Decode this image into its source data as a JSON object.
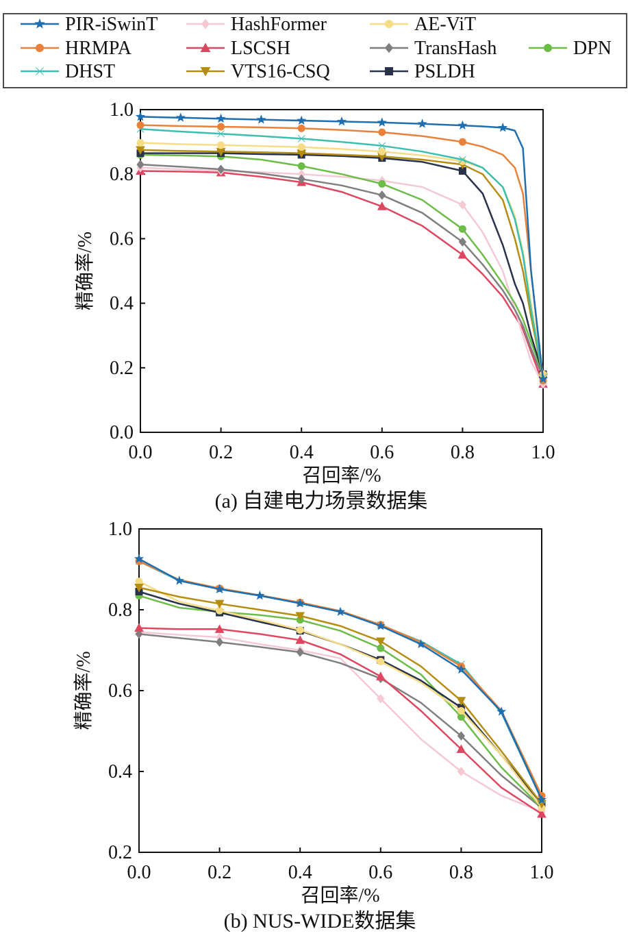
{
  "legend": [
    {
      "name": "PIR-iSwinT",
      "color": "#1f6fb0",
      "marker": "star"
    },
    {
      "name": "HashFormer",
      "color": "#f4c9d3",
      "marker": "diamond"
    },
    {
      "name": "AE-ViT",
      "color": "#f7dc86",
      "marker": "hexagon"
    },
    {
      "name": "HRMPA",
      "color": "#e8823a",
      "marker": "hexagon"
    },
    {
      "name": "LSCSH",
      "color": "#de4760",
      "marker": "triangle"
    },
    {
      "name": "TransHash",
      "color": "#7f7f7f",
      "marker": "diamond"
    },
    {
      "name": "DPN",
      "color": "#6cbd48",
      "marker": "circle"
    },
    {
      "name": "DHST",
      "color": "#3bbfb0",
      "marker": "x"
    },
    {
      "name": "VTS16-CSQ",
      "color": "#b58d10",
      "marker": "triangle-down"
    },
    {
      "name": "PSLDH",
      "color": "#28324a",
      "marker": "square"
    }
  ],
  "chart_data": [
    {
      "type": "line",
      "title": "(a) 自建电力场景数据集",
      "xlabel": "召回率/%",
      "ylabel": "精确率/%",
      "xlim": [
        0,
        1
      ],
      "ylim": [
        0,
        1
      ],
      "xticks": [
        "0.0",
        "0.2",
        "0.4",
        "0.6",
        "0.8",
        "1.0"
      ],
      "yticks": [
        "0.0",
        "0.2",
        "0.4",
        "0.6",
        "0.8",
        "1.0"
      ],
      "x": [
        0,
        0.1,
        0.2,
        0.3,
        0.4,
        0.5,
        0.6,
        0.7,
        0.8,
        0.85,
        0.9,
        0.93,
        0.95,
        0.97,
        1.0
      ],
      "series": [
        {
          "name": "PIR-iSwinT",
          "values": [
            0.978,
            0.975,
            0.972,
            0.969,
            0.966,
            0.963,
            0.96,
            0.956,
            0.951,
            0.948,
            0.944,
            0.935,
            0.88,
            0.5,
            0.165
          ]
        },
        {
          "name": "HRMPA",
          "values": [
            0.952,
            0.949,
            0.947,
            0.945,
            0.942,
            0.937,
            0.93,
            0.918,
            0.9,
            0.885,
            0.86,
            0.82,
            0.74,
            0.5,
            0.16
          ]
        },
        {
          "name": "DHST",
          "values": [
            0.94,
            0.932,
            0.925,
            0.918,
            0.91,
            0.9,
            0.888,
            0.87,
            0.845,
            0.82,
            0.76,
            0.66,
            0.55,
            0.38,
            0.17
          ]
        },
        {
          "name": "AE-ViT",
          "values": [
            0.897,
            0.893,
            0.89,
            0.887,
            0.884,
            0.878,
            0.87,
            0.858,
            0.84,
            0.82,
            0.76,
            0.67,
            0.56,
            0.4,
            0.18
          ]
        },
        {
          "name": "VTS16-CSQ",
          "values": [
            0.875,
            0.872,
            0.87,
            0.868,
            0.865,
            0.86,
            0.855,
            0.845,
            0.83,
            0.8,
            0.72,
            0.6,
            0.5,
            0.36,
            0.17
          ]
        },
        {
          "name": "PSLDH",
          "values": [
            0.865,
            0.865,
            0.865,
            0.862,
            0.86,
            0.856,
            0.85,
            0.838,
            0.81,
            0.74,
            0.58,
            0.46,
            0.4,
            0.3,
            0.18
          ]
        },
        {
          "name": "DPN",
          "values": [
            0.86,
            0.858,
            0.855,
            0.845,
            0.825,
            0.8,
            0.77,
            0.72,
            0.63,
            0.55,
            0.46,
            0.4,
            0.35,
            0.28,
            0.18
          ]
        },
        {
          "name": "TransHash",
          "values": [
            0.83,
            0.823,
            0.815,
            0.802,
            0.785,
            0.765,
            0.735,
            0.68,
            0.59,
            0.52,
            0.44,
            0.38,
            0.33,
            0.26,
            0.17
          ]
        },
        {
          "name": "HashFormer",
          "values": [
            0.82,
            0.815,
            0.81,
            0.806,
            0.8,
            0.792,
            0.78,
            0.76,
            0.705,
            0.62,
            0.5,
            0.38,
            0.3,
            0.22,
            0.15
          ]
        },
        {
          "name": "LSCSH",
          "values": [
            0.81,
            0.808,
            0.805,
            0.792,
            0.775,
            0.745,
            0.7,
            0.64,
            0.55,
            0.49,
            0.42,
            0.36,
            0.32,
            0.25,
            0.15
          ]
        }
      ]
    },
    {
      "type": "line",
      "title": "(b) NUS-WIDE数据集",
      "xlabel": "召回率/%",
      "ylabel": "精确率/%",
      "xlim": [
        0,
        1
      ],
      "ylim": [
        0.2,
        1
      ],
      "xticks": [
        "0.0",
        "0.2",
        "0.4",
        "0.6",
        "0.8",
        "1.0"
      ],
      "yticks": [
        "0.2",
        "0.4",
        "0.6",
        "0.8",
        "1.0"
      ],
      "x": [
        0,
        0.1,
        0.2,
        0.3,
        0.4,
        0.5,
        0.6,
        0.7,
        0.8,
        0.9,
        1.0
      ],
      "series": [
        {
          "name": "PIR-iSwinT",
          "values": [
            0.926,
            0.872,
            0.851,
            0.835,
            0.816,
            0.795,
            0.76,
            0.715,
            0.652,
            0.548,
            0.33
          ]
        },
        {
          "name": "HRMPA",
          "values": [
            0.92,
            0.874,
            0.853,
            0.836,
            0.818,
            0.797,
            0.763,
            0.72,
            0.66,
            0.55,
            0.34
          ]
        },
        {
          "name": "DHST",
          "values": [
            0.92,
            0.872,
            0.851,
            0.835,
            0.817,
            0.796,
            0.762,
            0.722,
            0.665,
            0.545,
            0.33
          ]
        },
        {
          "name": "VTS16-CSQ",
          "values": [
            0.855,
            0.832,
            0.815,
            0.8,
            0.785,
            0.76,
            0.722,
            0.66,
            0.575,
            0.45,
            0.32
          ]
        },
        {
          "name": "AE-ViT",
          "values": [
            0.87,
            0.82,
            0.798,
            0.775,
            0.75,
            0.715,
            0.672,
            0.62,
            0.55,
            0.44,
            0.31
          ]
        },
        {
          "name": "PSLDH",
          "values": [
            0.845,
            0.815,
            0.793,
            0.77,
            0.748,
            0.715,
            0.676,
            0.625,
            0.558,
            0.44,
            0.32
          ]
        },
        {
          "name": "DPN",
          "values": [
            0.835,
            0.805,
            0.795,
            0.787,
            0.775,
            0.748,
            0.705,
            0.64,
            0.535,
            0.41,
            0.31
          ]
        },
        {
          "name": "LSCSH",
          "values": [
            0.755,
            0.752,
            0.752,
            0.74,
            0.725,
            0.69,
            0.635,
            0.55,
            0.455,
            0.36,
            0.295
          ]
        },
        {
          "name": "TransHash",
          "values": [
            0.74,
            0.73,
            0.72,
            0.708,
            0.695,
            0.668,
            0.63,
            0.57,
            0.488,
            0.39,
            0.31
          ]
        },
        {
          "name": "HashFormer",
          "values": [
            0.745,
            0.738,
            0.732,
            0.715,
            0.7,
            0.68,
            0.58,
            0.48,
            0.4,
            0.34,
            0.3
          ]
        }
      ]
    }
  ]
}
